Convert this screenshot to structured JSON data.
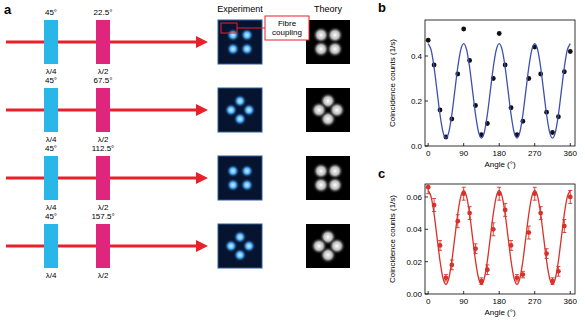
{
  "panel_a": {
    "label": "a",
    "columns": [
      "Experiment",
      "Theory"
    ],
    "annotation": "Fibre coupling",
    "rows": [
      {
        "qwp_angle": "45°",
        "hwp_angle": "22.5°",
        "qwp_label": "λ/4",
        "hwp_label": "λ/2"
      },
      {
        "qwp_angle": "45°",
        "hwp_angle": "67.5°",
        "qwp_label": "λ/4",
        "hwp_label": "λ/2"
      },
      {
        "qwp_angle": "45°",
        "hwp_angle": "112.5°",
        "qwp_label": "λ/4",
        "hwp_label": "λ/2"
      },
      {
        "qwp_angle": "45°",
        "hwp_angle": "157.5°",
        "qwp_label": "λ/4",
        "hwp_label": "λ/2"
      }
    ]
  },
  "chart_data": [
    {
      "type": "scatter",
      "title": "b",
      "x_label": "Angle (°)",
      "y_label": "Coincidence counts (1/s)",
      "xlim": [
        -8,
        372
      ],
      "ylim": [
        0,
        0.56
      ],
      "xticks": [
        0,
        90,
        180,
        270,
        360
      ],
      "yticks": [
        {
          "value": 0,
          "label": "0.0"
        },
        {
          "value": 0.2,
          "label": "0.2"
        },
        {
          "value": 0.4,
          "label": "0.4"
        }
      ],
      "grid": false,
      "series": [
        {
          "type": "scatter",
          "color": "#111111",
          "marker": "circle",
          "x": [
            0,
            15,
            30,
            45,
            60,
            75,
            90,
            105,
            120,
            135,
            150,
            165,
            180,
            195,
            210,
            225,
            240,
            255,
            270,
            285,
            300,
            315,
            330,
            345,
            360
          ],
          "values": [
            0.47,
            0.36,
            0.16,
            0.04,
            0.12,
            0.32,
            0.52,
            0.38,
            0.18,
            0.05,
            0.1,
            0.3,
            0.5,
            0.36,
            0.17,
            0.05,
            0.11,
            0.3,
            0.44,
            0.32,
            0.15,
            0.06,
            0.13,
            0.33,
            0.42
          ]
        },
        {
          "type": "line",
          "color": "#3a4fb0",
          "line_style": "solid",
          "x": [
            0,
            7.5,
            15,
            22.5,
            30,
            37.5,
            45,
            52.5,
            60,
            67.5,
            75,
            82.5,
            90,
            97.5,
            105,
            112.5,
            120,
            127.5,
            135,
            142.5,
            150,
            157.5,
            165,
            172.5,
            180,
            187.5,
            195,
            202.5,
            210,
            217.5,
            225,
            232.5,
            240,
            247.5,
            255,
            262.5,
            270,
            277.5,
            285,
            292.5,
            300,
            307.5,
            315,
            322.5,
            330,
            337.5,
            345,
            352.5,
            360
          ],
          "values": [
            0.455,
            0.427,
            0.35,
            0.245,
            0.14,
            0.063,
            0.035,
            0.063,
            0.14,
            0.245,
            0.35,
            0.427,
            0.455,
            0.427,
            0.35,
            0.245,
            0.14,
            0.063,
            0.035,
            0.063,
            0.14,
            0.245,
            0.35,
            0.427,
            0.455,
            0.427,
            0.35,
            0.245,
            0.14,
            0.063,
            0.035,
            0.063,
            0.14,
            0.245,
            0.35,
            0.427,
            0.455,
            0.427,
            0.35,
            0.245,
            0.14,
            0.063,
            0.035,
            0.063,
            0.14,
            0.245,
            0.35,
            0.427,
            0.455
          ]
        }
      ]
    },
    {
      "type": "scatter",
      "title": "c",
      "x_label": "Angle (°)",
      "y_label": "Coincidence counts (1/s)",
      "xlim": [
        -8,
        372
      ],
      "ylim": [
        0,
        0.068
      ],
      "xticks": [
        0,
        90,
        180,
        270,
        360
      ],
      "yticks": [
        {
          "value": 0,
          "label": "0.00"
        },
        {
          "value": 0.02,
          "label": "0.02"
        },
        {
          "value": 0.04,
          "label": "0.04"
        },
        {
          "value": 0.06,
          "label": "0.06"
        }
      ],
      "grid": false,
      "series": [
        {
          "type": "scatter",
          "color": "#d8322a",
          "marker": "circle",
          "x": [
            0,
            15,
            30,
            45,
            60,
            75,
            90,
            105,
            120,
            135,
            150,
            165,
            180,
            195,
            210,
            225,
            240,
            255,
            270,
            285,
            300,
            315,
            330,
            345,
            360
          ],
          "values": [
            0.066,
            0.055,
            0.03,
            0.01,
            0.018,
            0.045,
            0.062,
            0.05,
            0.028,
            0.008,
            0.015,
            0.04,
            0.062,
            0.052,
            0.03,
            0.01,
            0.012,
            0.038,
            0.062,
            0.05,
            0.025,
            0.008,
            0.014,
            0.042,
            0.06
          ],
          "errors": [
            0.004,
            0.004,
            0.003,
            0.002,
            0.003,
            0.004,
            0.004,
            0.004,
            0.003,
            0.002,
            0.003,
            0.004,
            0.004,
            0.004,
            0.003,
            0.002,
            0.002,
            0.004,
            0.004,
            0.004,
            0.003,
            0.002,
            0.003,
            0.004,
            0.004
          ]
        },
        {
          "type": "line",
          "color": "#d8322a",
          "line_style": "solid",
          "x": [
            0,
            7.5,
            15,
            22.5,
            30,
            37.5,
            45,
            52.5,
            60,
            67.5,
            75,
            82.5,
            90,
            97.5,
            105,
            112.5,
            120,
            127.5,
            135,
            142.5,
            150,
            157.5,
            165,
            172.5,
            180,
            187.5,
            195,
            202.5,
            210,
            217.5,
            225,
            232.5,
            240,
            247.5,
            255,
            262.5,
            270,
            277.5,
            285,
            292.5,
            300,
            307.5,
            315,
            322.5,
            330,
            337.5,
            345,
            352.5,
            360
          ],
          "values": [
            0.064,
            0.06,
            0.0495,
            0.035,
            0.0205,
            0.0099,
            0.006,
            0.0099,
            0.0205,
            0.035,
            0.0495,
            0.06,
            0.064,
            0.06,
            0.0495,
            0.035,
            0.0205,
            0.0099,
            0.006,
            0.0099,
            0.0205,
            0.035,
            0.0495,
            0.06,
            0.064,
            0.06,
            0.0495,
            0.035,
            0.0205,
            0.0099,
            0.006,
            0.0099,
            0.0205,
            0.035,
            0.0495,
            0.06,
            0.064,
            0.06,
            0.0495,
            0.035,
            0.0205,
            0.0099,
            0.006,
            0.0099,
            0.0205,
            0.035,
            0.0495,
            0.06,
            0.064
          ]
        }
      ]
    }
  ]
}
